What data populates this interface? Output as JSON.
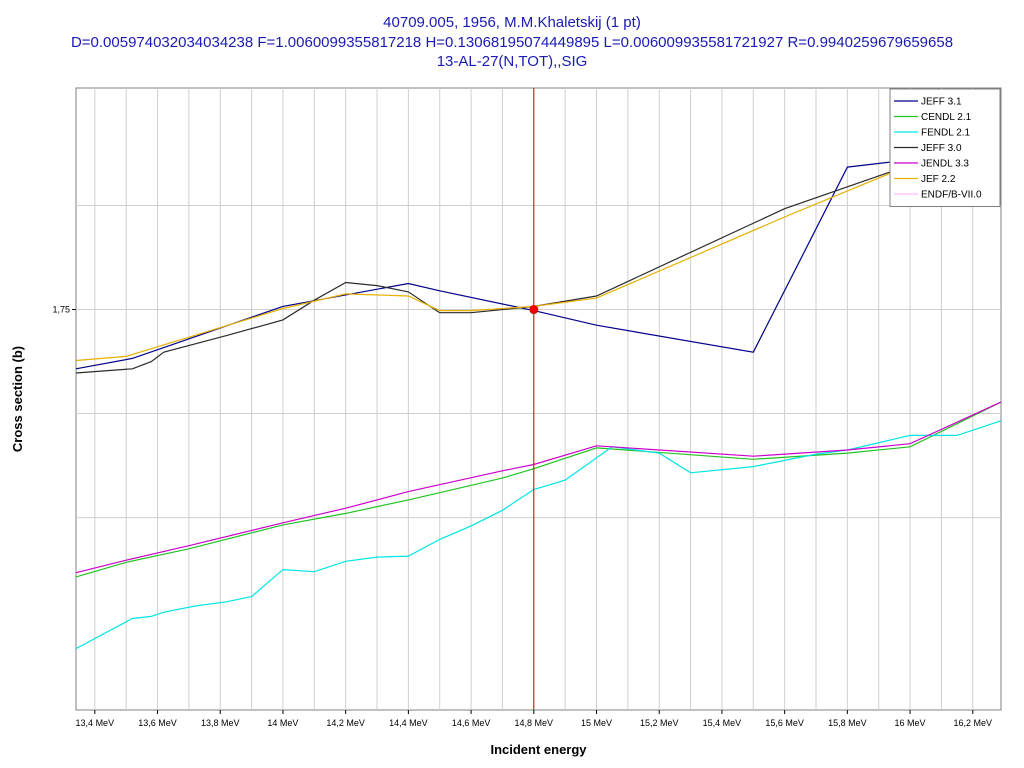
{
  "chart_data": {
    "type": "line",
    "title": "40709.005, 1956, M.M.Khaletskij (1 pt)",
    "subtitle": "D=0.005974032034034238 F=1.0060099355817218 H=0.13068195074449895 L=0.006009935581721927 R=0.9940259679659658",
    "subtitle2": "13-AL-27(N,TOT),,SIG",
    "xlabel": "Incident energy",
    "ylabel": "Cross section (b)",
    "xlim": [
      13.34,
      16.29
    ],
    "ylim": [
      1.5575,
      1.8565
    ],
    "y_labeled_tick": 1.75,
    "y_labeled_tick_text": "1,75",
    "x_ticks": [
      13.4,
      13.6,
      13.8,
      14.0,
      14.2,
      14.4,
      14.6,
      14.8,
      15.0,
      15.2,
      15.4,
      15.6,
      15.8,
      16.0,
      16.2
    ],
    "x_tick_labels": [
      "13,4 MeV",
      "13,6 MeV",
      "13,8 MeV",
      "14 MeV",
      "14,2 MeV",
      "14,4 MeV",
      "14,6 MeV",
      "14,8 MeV",
      "15 MeV",
      "15,2 MeV",
      "15,4 MeV",
      "15,6 MeV",
      "15,8 MeV",
      "16 MeV",
      "16,2 MeV"
    ],
    "x_grid": [
      13.3,
      13.4,
      13.5,
      13.6,
      13.7,
      13.8,
      13.9,
      14.0,
      14.1,
      14.2,
      14.3,
      14.4,
      14.5,
      14.6,
      14.7,
      14.8,
      14.9,
      15.0,
      15.1,
      15.2,
      15.3,
      15.4,
      15.5,
      15.6,
      15.7,
      15.8,
      15.9,
      16.0,
      16.1,
      16.2
    ],
    "y_grid": [
      1.65,
      1.7,
      1.75,
      1.8
    ],
    "grid": true,
    "legend_position": "top-right",
    "experimental_point": {
      "x": 14.8,
      "y": 1.75
    },
    "marker_line_x": 14.8,
    "series": [
      {
        "name": "JEFF 3.1",
        "color": "#00008b",
        "x": [
          13.34,
          13.52,
          14.0,
          14.4,
          14.5,
          14.8,
          15.0,
          15.5,
          15.8,
          16.0
        ],
        "y": [
          1.7215,
          1.7265,
          1.7515,
          1.7625,
          1.759,
          1.7495,
          1.7425,
          1.7295,
          1.8185,
          1.822
        ]
      },
      {
        "name": "CENDL 2.1",
        "color": "#22c322",
        "x": [
          13.34,
          13.5,
          13.7,
          14.0,
          14.2,
          14.4,
          14.7,
          14.8,
          15.0,
          15.5,
          15.8,
          16.0,
          16.29
        ],
        "y": [
          1.6215,
          1.6285,
          1.635,
          1.6465,
          1.652,
          1.6585,
          1.669,
          1.6735,
          1.6835,
          1.678,
          1.681,
          1.684,
          1.7055
        ]
      },
      {
        "name": "FENDL 2.1",
        "color": "#00e5e5",
        "x": [
          13.34,
          13.52,
          13.58,
          13.62,
          13.72,
          13.82,
          13.9,
          14.0,
          14.1,
          14.2,
          14.3,
          14.4,
          14.5,
          14.6,
          14.7,
          14.8,
          14.9,
          15.05,
          15.2,
          15.3,
          15.5,
          15.7,
          15.8,
          16.0,
          16.15,
          16.29
        ],
        "y": [
          1.587,
          1.6015,
          1.6025,
          1.6045,
          1.6075,
          1.6095,
          1.612,
          1.625,
          1.624,
          1.629,
          1.631,
          1.6315,
          1.6395,
          1.646,
          1.6535,
          1.6635,
          1.668,
          1.684,
          1.681,
          1.6715,
          1.6745,
          1.6805,
          1.6825,
          1.6895,
          1.6895,
          1.6965
        ]
      },
      {
        "name": "JEFF 3.0",
        "color": "#2b2b2b",
        "x": [
          13.34,
          13.52,
          13.58,
          13.62,
          13.82,
          14.0,
          14.1,
          14.2,
          14.3,
          14.4,
          14.5,
          14.6,
          14.8,
          15.0,
          15.6,
          16.0
        ],
        "y": [
          1.7195,
          1.7215,
          1.725,
          1.7295,
          1.7375,
          1.745,
          1.7545,
          1.763,
          1.7615,
          1.7585,
          1.7485,
          1.7485,
          1.7515,
          1.7565,
          1.7985,
          1.8195
        ]
      },
      {
        "name": "JENDL 3.3",
        "color": "#cc00cc",
        "x": [
          13.34,
          13.5,
          13.7,
          14.0,
          14.2,
          14.4,
          14.7,
          14.8,
          15.0,
          15.5,
          15.8,
          16.0,
          16.29
        ],
        "y": [
          1.6235,
          1.6295,
          1.6365,
          1.6475,
          1.6545,
          1.6625,
          1.6725,
          1.6755,
          1.6845,
          1.6795,
          1.6825,
          1.6855,
          1.7055
        ]
      },
      {
        "name": "JEF 2.2",
        "color": "#e5b000",
        "x": [
          13.34,
          13.5,
          14.0,
          14.2,
          14.4,
          14.5,
          14.6,
          14.8,
          15.0,
          15.6,
          16.0
        ],
        "y": [
          1.7255,
          1.7275,
          1.7505,
          1.7575,
          1.7565,
          1.7495,
          1.7495,
          1.7515,
          1.7555,
          1.7945,
          1.8195
        ]
      },
      {
        "name": "ENDF/B-VII.0",
        "color": "#ffb6ff",
        "x": [],
        "y": []
      }
    ]
  }
}
